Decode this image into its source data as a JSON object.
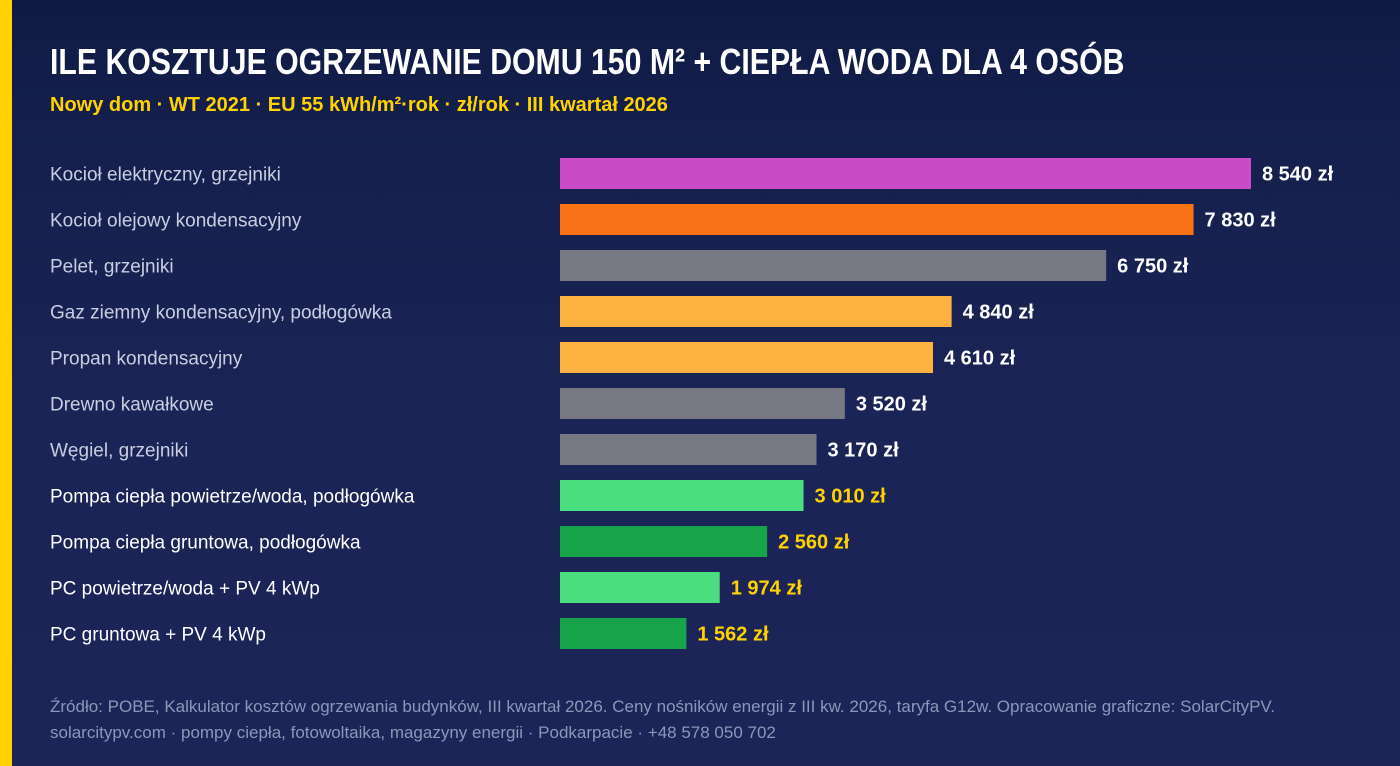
{
  "header": {
    "title": "ILE KOSZTUJE OGRZEWANIE DOMU 150 M² + CIEPŁA WODA DLA 4 OSÓB",
    "subtitle": "Nowy dom · WT 2021 · EU 55 kWh/m²·rok · zł/rok · III kwartał 2026"
  },
  "chart_data": {
    "type": "bar",
    "orientation": "horizontal",
    "title": "ILE KOSZTUJE OGRZEWANIE DOMU 150 M² + CIEPŁA WODA DLA 4 OSÓB",
    "subtitle": "Nowy dom · WT 2021 · EU 55 kWh/m²·rok · zł/rok · III kwartał 2026",
    "categories": [
      "Kocioł elektryczny, grzejniki",
      "Kocioł olejowy kondensacyjny",
      "Pelet, grzejniki",
      "Gaz ziemny kondensacyjny, podłogówka",
      "Propan kondensacyjny",
      "Drewno kawałkowe",
      "Węgiel, grzejniki",
      "Pompa ciepła powietrze/woda, podłogówka",
      "Pompa ciepła gruntowa, podłogówka",
      "PC powietrze/woda + PV 4 kWp",
      "PC gruntowa + PV 4 kWp"
    ],
    "values": [
      8540,
      7830,
      6750,
      4840,
      4610,
      3520,
      3170,
      3010,
      2560,
      1974,
      1562
    ],
    "value_labels": [
      "8 540 zł",
      "7 830 zł",
      "6 750 zł",
      "4 840 zł",
      "4 610 zł",
      "3 520 zł",
      "3 170 zł",
      "3 010 zł",
      "2 560 zł",
      "1 974 zł",
      "1 562 zł"
    ],
    "bar_colors": [
      "#c94bc7",
      "#f97316",
      "#787885",
      "#ffb23f",
      "#ffb23f",
      "#787885",
      "#787885",
      "#4ade80",
      "#16a34a",
      "#4ade80",
      "#16a34a"
    ],
    "highlight": [
      false,
      false,
      false,
      false,
      false,
      false,
      false,
      true,
      true,
      true,
      true
    ],
    "xlim": [
      0,
      8540
    ],
    "xlabel": "",
    "ylabel": "",
    "grid": false,
    "legend": "none"
  },
  "colors": {
    "background": "#1b2354",
    "accent": "#ffd200",
    "label_default": "#c9cee0",
    "label_highlight": "#ffffff",
    "value_default": "#ffffff",
    "value_highlight": "#ffd200"
  },
  "footer": {
    "source": "Źródło: POBE, Kalkulator kosztów ogrzewania budynków, III kwartał 2026. Ceny nośników energii z III kw. 2026, taryfa G12w. Opracowanie graficzne: SolarCityPV.",
    "contact": "solarcitypv.com · pompy ciepła, fotowoltaika, magazyny energii · Podkarpacie · +48 578 050 702"
  }
}
